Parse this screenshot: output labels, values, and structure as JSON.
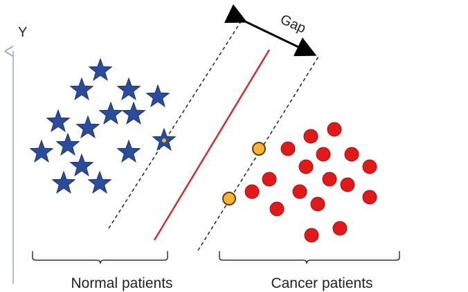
{
  "labels": {
    "y_axis": "Y",
    "gap": "Gap",
    "group_left": "Normal patients",
    "group_right": "Cancer patients"
  },
  "colors": {
    "axis": "#8fa8c8",
    "star": "#2b4c9a",
    "star_edge": "#1a3275",
    "star_support_center": "#e8b830",
    "circle": "#e01a1a",
    "circle_edge": "#a50f0f",
    "support_circle": "#f4b43a",
    "support_circle_edge": "#6b3b00",
    "hyperplane": "#d62a2a",
    "margin_line": "#222222",
    "text": "#222222"
  },
  "icons": {
    "normal": "star-icon",
    "cancer": "circle-icon"
  }
}
